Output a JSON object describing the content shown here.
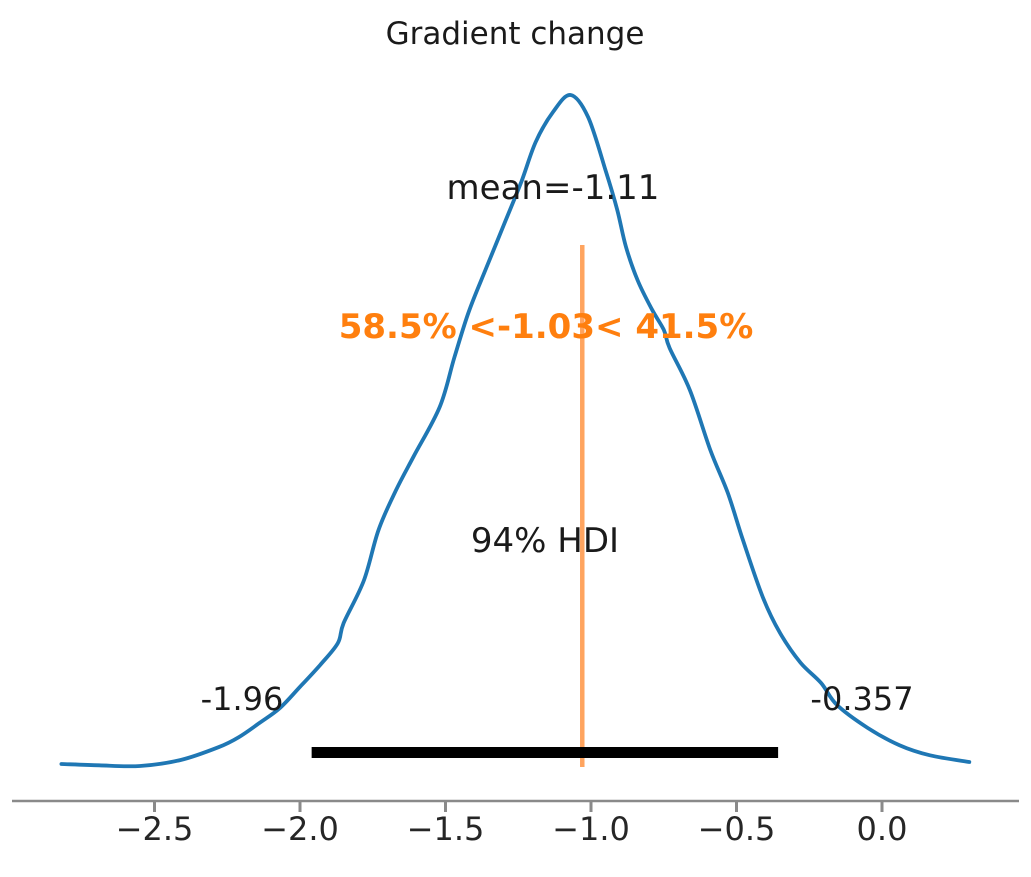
{
  "chart_data": {
    "type": "line",
    "subtype": "posterior-density-kde",
    "title": "Gradient change",
    "xlabel": "",
    "ylabel": "",
    "grid": false,
    "legend": "none",
    "xlim": [
      -2.95,
      0.45
    ],
    "x_ticks": [
      {
        "value": -2.5,
        "label": "−2.5"
      },
      {
        "value": -2.0,
        "label": "−2.0"
      },
      {
        "value": -1.5,
        "label": "−1.5"
      },
      {
        "value": -1.0,
        "label": "−1.0"
      },
      {
        "value": -0.5,
        "label": "−0.5"
      },
      {
        "value": 0.0,
        "label": "0.0"
      }
    ],
    "annotations": {
      "mean": -1.11,
      "mean_label": "mean=-1.11",
      "ref_val": -1.03,
      "ref_val_label": "58.5% <-1.03< 41.5%",
      "pct_below_ref": 58.5,
      "pct_above_ref": 41.5,
      "hdi_prob": 0.94,
      "hdi_label": "94% HDI",
      "hdi_lower": -1.96,
      "hdi_upper": -0.357,
      "hdi_lower_label": "-1.96",
      "hdi_upper_label": "-0.357"
    },
    "colors": {
      "curve": "#1f77b4",
      "ref_line": "#ffa45f",
      "ref_text": "#ff7f0e",
      "hdi_bar": "#000000",
      "axis": "#8a8a8a",
      "text": "#1a1a1a"
    },
    "curve": {
      "x": [
        -2.82,
        -2.69,
        -2.55,
        -2.41,
        -2.28,
        -2.21,
        -2.14,
        -2.07,
        -2.0,
        -1.93,
        -1.87,
        -1.85,
        -1.78,
        -1.73,
        -1.67,
        -1.61,
        -1.52,
        -1.47,
        -1.42,
        -1.36,
        -1.3,
        -1.24,
        -1.19,
        -1.13,
        -1.07,
        -1.01,
        -0.95,
        -0.91,
        -0.88,
        -0.84,
        -0.79,
        -0.75,
        -0.73,
        -0.66,
        -0.59,
        -0.53,
        -0.478,
        -0.41,
        -0.35,
        -0.28,
        -0.21,
        -0.155,
        -0.05,
        0.06,
        0.165,
        0.3
      ],
      "density": [
        0.003,
        0.001,
        0.0,
        0.009,
        0.028,
        0.043,
        0.064,
        0.086,
        0.118,
        0.151,
        0.183,
        0.213,
        0.277,
        0.352,
        0.411,
        0.461,
        0.535,
        0.608,
        0.677,
        0.742,
        0.806,
        0.87,
        0.93,
        0.975,
        1.0,
        0.967,
        0.888,
        0.829,
        0.774,
        0.724,
        0.68,
        0.65,
        0.623,
        0.56,
        0.471,
        0.407,
        0.337,
        0.252,
        0.198,
        0.154,
        0.124,
        0.091,
        0.057,
        0.031,
        0.016,
        0.006
      ]
    }
  }
}
